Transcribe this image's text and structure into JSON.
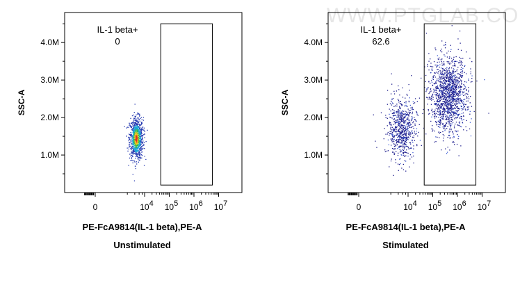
{
  "watermark": "WWW.PTGLAB.COM",
  "chart_data": [
    {
      "type": "scatter",
      "subtitle": "Unstimulated",
      "xlabel": "PE-FcA9814(IL-1 beta),PE-A",
      "ylabel": "SSC-A",
      "x_scale": "biexponential",
      "x_ticks": [
        {
          "value": 0,
          "base": "0",
          "exp": ""
        },
        {
          "value": 10000,
          "base": "10",
          "exp": "4"
        },
        {
          "value": 100000,
          "base": "10",
          "exp": "5"
        },
        {
          "value": 1000000,
          "base": "10",
          "exp": "6"
        },
        {
          "value": 10000000,
          "base": "10",
          "exp": "7"
        }
      ],
      "y_ticks": [
        {
          "value": 1000000,
          "label": "1.0M"
        },
        {
          "value": 2000000,
          "label": "2.0M"
        },
        {
          "value": 3000000,
          "label": "3.0M"
        },
        {
          "value": 4000000,
          "label": "4.0M"
        }
      ],
      "ylim": [
        0,
        4800000
      ],
      "gate": {
        "name": "IL-1 beta+",
        "value": "0",
        "x_min": 45000,
        "x_max": 5600000,
        "y_min": 200000,
        "y_max": 4500000
      },
      "populations": [
        {
          "x_center": 4500,
          "y_center": 1450000,
          "x_spread_log": 0.14,
          "y_spread": 280000,
          "events": 900,
          "density_coloring": true
        }
      ]
    },
    {
      "type": "scatter",
      "subtitle": "Stimulated",
      "xlabel": "PE-FcA9814(IL-1 beta),PE-A",
      "ylabel": "SSC-A",
      "x_scale": "biexponential",
      "x_ticks": [
        {
          "value": 0,
          "base": "0",
          "exp": ""
        },
        {
          "value": 10000,
          "base": "10",
          "exp": "4"
        },
        {
          "value": 100000,
          "base": "10",
          "exp": "5"
        },
        {
          "value": 1000000,
          "base": "10",
          "exp": "6"
        },
        {
          "value": 10000000,
          "base": "10",
          "exp": "7"
        }
      ],
      "y_ticks": [
        {
          "value": 1000000,
          "label": "1.0M"
        },
        {
          "value": 2000000,
          "label": "2.0M"
        },
        {
          "value": 3000000,
          "label": "3.0M"
        },
        {
          "value": 4000000,
          "label": "4.0M"
        }
      ],
      "ylim": [
        0,
        4800000
      ],
      "gate": {
        "name": "IL-1 beta+",
        "value": "62.6",
        "x_min": 45000,
        "x_max": 5600000,
        "y_min": 200000,
        "y_max": 4500000
      },
      "populations": [
        {
          "x_center": 5500,
          "y_center": 1700000,
          "x_spread_log": 0.28,
          "y_spread": 420000,
          "events": 700,
          "density_coloring": false
        },
        {
          "x_center": 420000,
          "y_center": 2600000,
          "x_spread_log": 0.38,
          "y_spread": 520000,
          "events": 1400,
          "density_coloring": false
        }
      ]
    }
  ]
}
